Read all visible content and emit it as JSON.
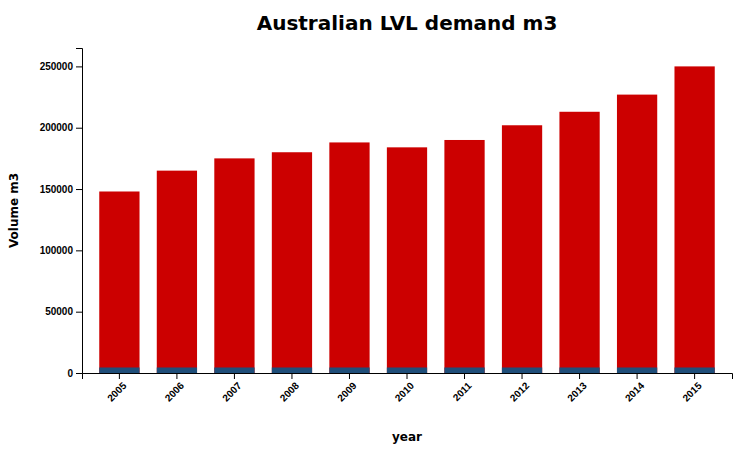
{
  "chart_data": {
    "type": "bar",
    "title": "Australian LVL demand m3",
    "x_label": "year",
    "y_label": "Volume m3",
    "categories": [
      "2005",
      "2006",
      "2007",
      "2008",
      "2009",
      "2010",
      "2011",
      "2012",
      "2013",
      "2014",
      "2015"
    ],
    "series": [
      {
        "color": "#CC0000",
        "values": [
          148000,
          165000,
          175000,
          180000,
          188000,
          184000,
          190000,
          202000,
          213000,
          227000,
          250000
        ]
      },
      {
        "color": "#1F4E79",
        "values": [
          4500,
          4500,
          4500,
          4500,
          4500,
          4500,
          4500,
          4500,
          4500,
          4500,
          4500
        ]
      }
    ],
    "ylim": [
      0,
      265000
    ],
    "yticks": [
      0,
      50000,
      100000,
      150000,
      200000,
      250000
    ],
    "grid": false
  }
}
